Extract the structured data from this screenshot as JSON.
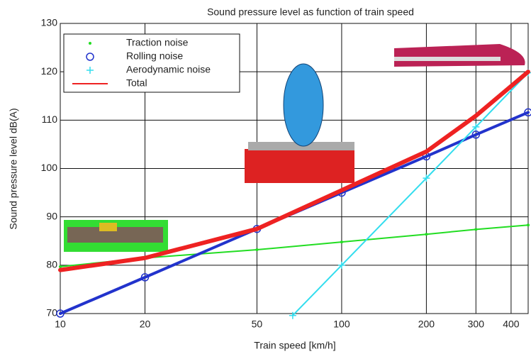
{
  "chart_data": {
    "type": "line",
    "title": "Sound pressure level as function of train speed",
    "x_label": "Train speed [km/h]",
    "y_label": "Sound pressure level dB(A)",
    "log_x": true,
    "grid": true,
    "xlim": [
      10,
      460
    ],
    "ylim": [
      70,
      130
    ],
    "xticks": [
      10,
      20,
      50,
      100,
      200,
      300,
      400
    ],
    "yticks": [
      70,
      80,
      90,
      100,
      110,
      120,
      130
    ],
    "legend": "upper left",
    "series": [
      {
        "name": "Traction noise",
        "color": "#22dd22",
        "marker": "dot",
        "width": 2,
        "x": [
          10,
          20,
          50,
          100,
          200,
          300,
          460
        ],
        "values": [
          79.7,
          81.5,
          83.2,
          84.8,
          86.4,
          87.4,
          88.3
        ]
      },
      {
        "name": "Rolling noise",
        "color": "#2233cc",
        "marker": "circle",
        "width": 4,
        "x": [
          10,
          20,
          50,
          100,
          200,
          300,
          460
        ],
        "values": [
          70,
          77.5,
          87.5,
          95,
          102.5,
          107,
          111.6
        ]
      },
      {
        "name": "Aerodynamic noise",
        "color": "#33ddee",
        "marker": "plus",
        "width": 2,
        "x": [
          67,
          100,
          200,
          300,
          460
        ],
        "values": [
          69.6,
          80,
          98,
          108.6,
          119.8
        ]
      },
      {
        "name": "Total",
        "color": "#ee2222",
        "marker": "none",
        "width": 6,
        "x": [
          10,
          20,
          50,
          100,
          200,
          300,
          460
        ],
        "values": [
          79,
          81.5,
          87.5,
          95.5,
          103.5,
          110.9,
          120
        ]
      }
    ]
  }
}
